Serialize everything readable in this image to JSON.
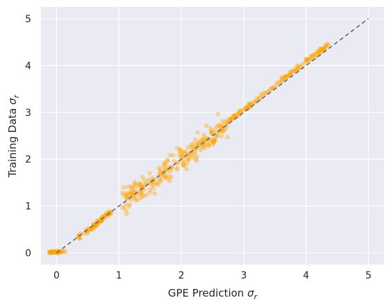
{
  "chart_data": {
    "type": "scatter",
    "title": "",
    "xlabel": {
      "text": "GPE Prediction ",
      "symbol": "σ",
      "subscript": "r"
    },
    "ylabel": {
      "text": "Training Data ",
      "symbol": "σ",
      "subscript": "r"
    },
    "xlim": [
      -0.25,
      5.25
    ],
    "ylim": [
      -0.25,
      5.25
    ],
    "xticks": [
      0,
      1,
      2,
      3,
      4,
      5
    ],
    "yticks": [
      0,
      1,
      2,
      3,
      4,
      5
    ],
    "grid": true,
    "style": "seaborn-darkgrid",
    "colors": {
      "background": "#EAEAF2",
      "grid": "#FFFFFF",
      "points": "#FFA500",
      "reference_line": "#666666"
    },
    "reference_line": {
      "x": [
        0,
        5
      ],
      "y": [
        0,
        5
      ],
      "style": "dashed"
    },
    "series": [
      {
        "segments": [
          {
            "x_range": [
              -0.12,
              0.15
            ],
            "slope": 0.1,
            "offset": 0.02,
            "noise": 0.01,
            "count": 45
          },
          {
            "x_range": [
              0.35,
              0.88
            ],
            "slope": 1.06,
            "offset": -0.05,
            "noise": 0.03,
            "count": 70
          },
          {
            "x_range": [
              1.05,
              2.75
            ],
            "slope": 1.0,
            "offset": 0.0,
            "noise": 0.13,
            "count": 240
          },
          {
            "x_range": [
              2.75,
              4.35
            ],
            "slope": 1.02,
            "offset": 0.0,
            "noise": 0.025,
            "count": 130
          }
        ]
      }
    ]
  }
}
